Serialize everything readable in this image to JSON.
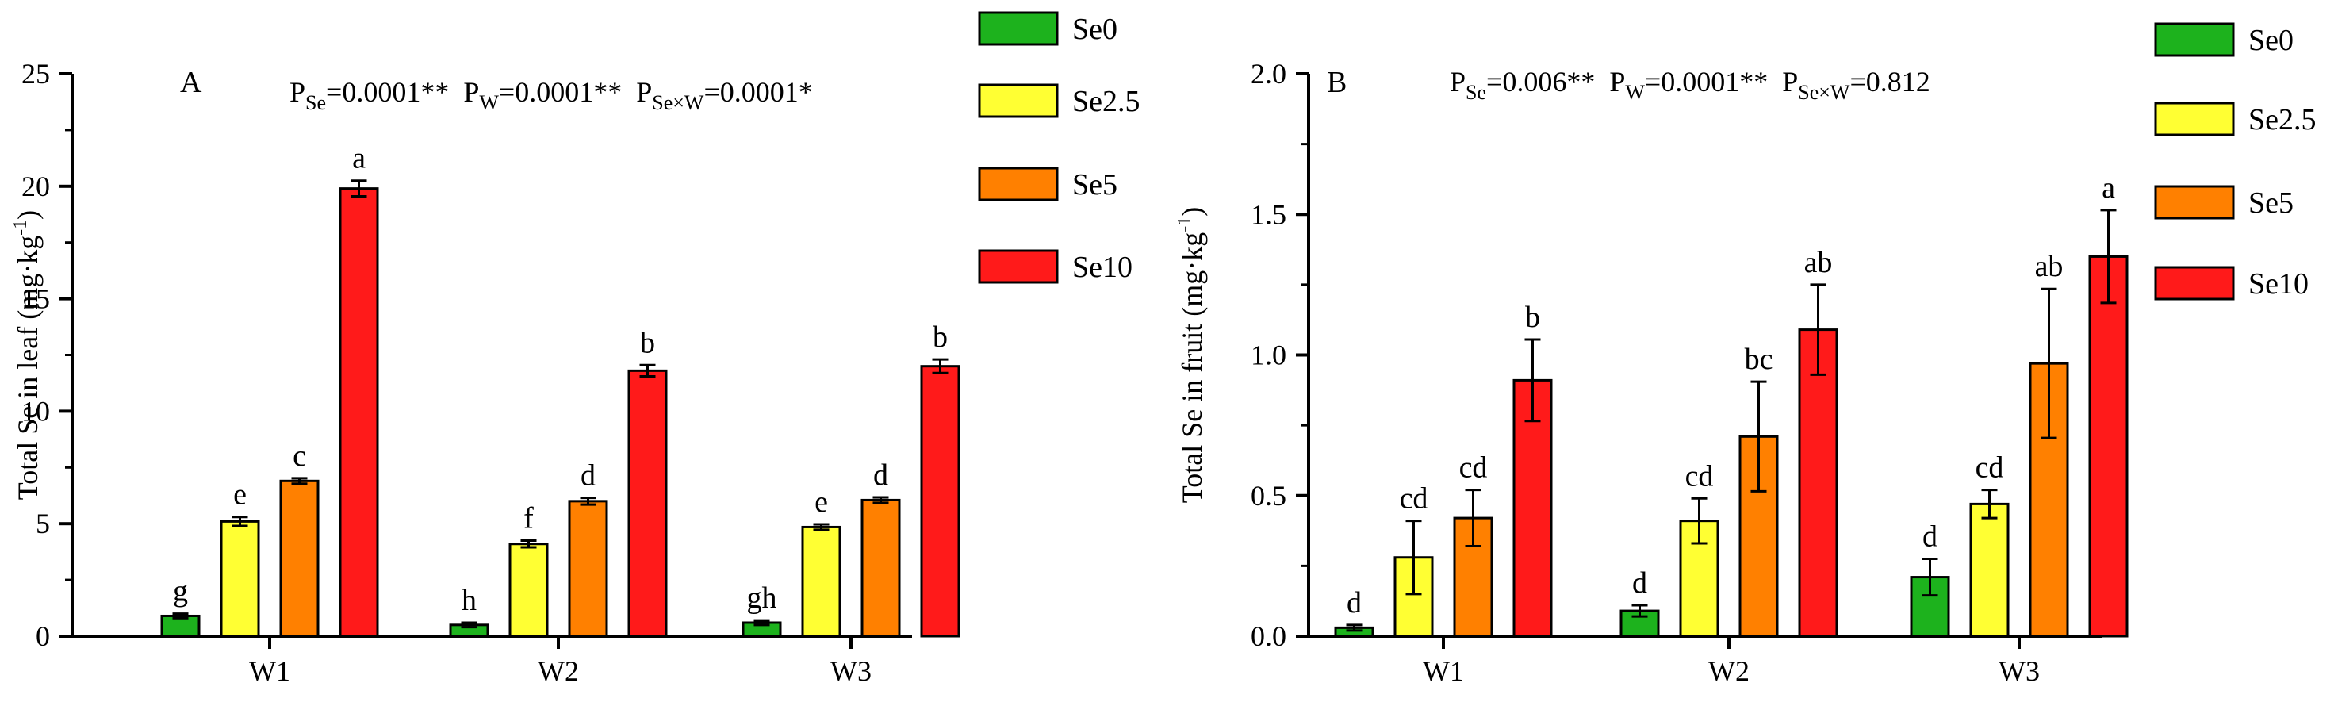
{
  "colors": {
    "Se0": "#1db21d",
    "Se2.5": "#ffff33",
    "Se5": "#ff8000",
    "Se10": "#ff1a1a",
    "axis": "#000000"
  },
  "chart_data": [
    {
      "type": "bar",
      "panel_label": "A",
      "categories": [
        "W1",
        "W2",
        "W3"
      ],
      "ylabel_main": "Total Se in leaf (mg·kg",
      "ylabel_sup": "-1",
      "ylabel_close": ")",
      "ylim": [
        0,
        25
      ],
      "yticks": [
        0,
        5,
        10,
        15,
        20,
        25
      ],
      "ytick_labels": [
        "0",
        "5",
        "10",
        "15",
        "20",
        "25"
      ],
      "legend_position": "right",
      "stats": [
        {
          "p": "P",
          "sub": "Se",
          "val": "=0.0001**"
        },
        {
          "p": "P",
          "sub": "W",
          "val": "=0.0001**"
        },
        {
          "p": "P",
          "sub": "Se×W",
          "val": "=0.0001*"
        }
      ],
      "series": [
        {
          "name": "Se0",
          "values": [
            0.9,
            0.5,
            0.6
          ],
          "errors": [
            0.1,
            0.1,
            0.1
          ],
          "letters": [
            "g",
            "h",
            "gh"
          ]
        },
        {
          "name": "Se2.5",
          "values": [
            5.1,
            4.1,
            4.85
          ],
          "errors": [
            0.2,
            0.15,
            0.12
          ],
          "letters": [
            "e",
            "f",
            "e"
          ]
        },
        {
          "name": "Se5",
          "values": [
            6.9,
            6.0,
            6.05
          ],
          "errors": [
            0.12,
            0.15,
            0.12
          ],
          "letters": [
            "c",
            "d",
            "d"
          ]
        },
        {
          "name": "Se10",
          "values": [
            19.9,
            11.8,
            12.0
          ],
          "errors": [
            0.35,
            0.25,
            0.3
          ],
          "letters": [
            "a",
            "b",
            "b"
          ]
        }
      ]
    },
    {
      "type": "bar",
      "panel_label": "B",
      "categories": [
        "W1",
        "W2",
        "W3"
      ],
      "ylabel_main": "Total Se in fruit (mg·kg",
      "ylabel_sup": "-1",
      "ylabel_close": ")",
      "ylim": [
        0,
        2.0
      ],
      "yticks": [
        0,
        0.5,
        1.0,
        1.5,
        2.0
      ],
      "ytick_labels": [
        "0.0",
        "0.5",
        "1.0",
        "1.5",
        "2.0"
      ],
      "legend_position": "right",
      "stats": [
        {
          "p": "P",
          "sub": "Se",
          "val": "=0.006**"
        },
        {
          "p": "P",
          "sub": "W",
          "val": "=0.0001**"
        },
        {
          "p": "P",
          "sub": "Se×W",
          "val": "=0.812"
        }
      ],
      "series": [
        {
          "name": "Se0",
          "values": [
            0.03,
            0.09,
            0.21
          ],
          "errors": [
            0.01,
            0.02,
            0.065
          ],
          "letters": [
            "d",
            "d",
            "d"
          ]
        },
        {
          "name": "Se2.5",
          "values": [
            0.28,
            0.41,
            0.47
          ],
          "errors": [
            0.13,
            0.08,
            0.05
          ],
          "letters": [
            "cd",
            "cd",
            "cd"
          ]
        },
        {
          "name": "Se5",
          "values": [
            0.42,
            0.71,
            0.97
          ],
          "errors": [
            0.1,
            0.195,
            0.265
          ],
          "letters": [
            "cd",
            "bc",
            "ab"
          ]
        },
        {
          "name": "Se10",
          "values": [
            0.91,
            1.09,
            1.35
          ],
          "errors": [
            0.145,
            0.16,
            0.165
          ],
          "letters": [
            "b",
            "ab",
            "a"
          ]
        }
      ]
    }
  ]
}
